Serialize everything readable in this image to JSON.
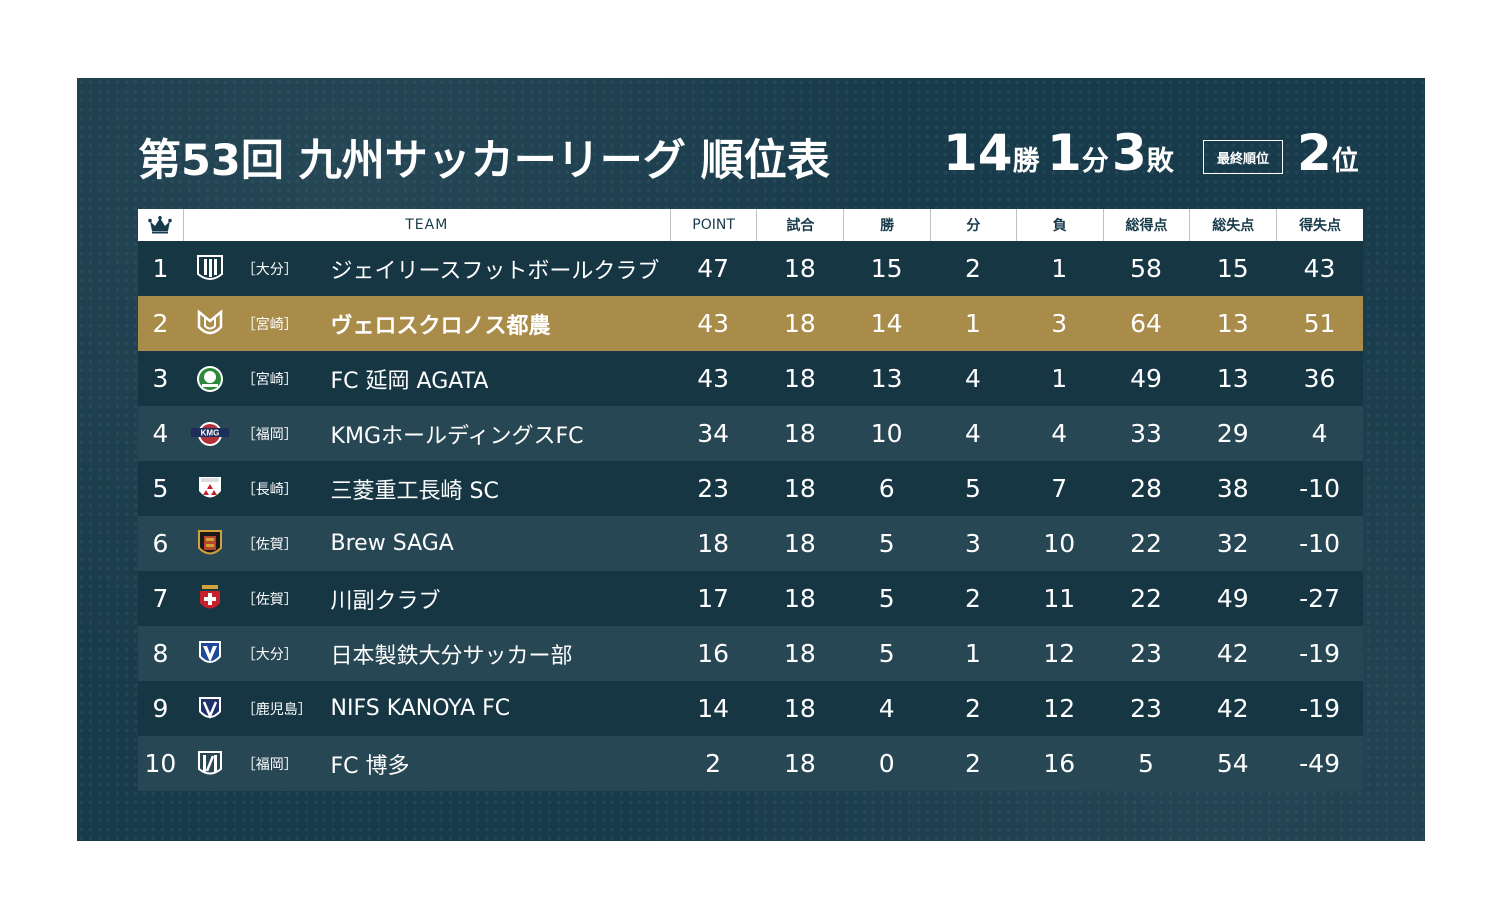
{
  "title": "第53回 九州サッカーリーグ 順位表",
  "record": {
    "wins": "14",
    "wins_unit": "勝",
    "draws": "1",
    "draws_unit": "分",
    "losses": "3",
    "losses_unit": "敗"
  },
  "final": {
    "label": "最終順位",
    "rank": "2",
    "rank_unit": "位"
  },
  "header": {
    "crown_icon": "crown-icon",
    "team": "TEAM",
    "point": "POINT",
    "games": "試合",
    "wins": "勝",
    "draws": "分",
    "losses": "負",
    "goals_for": "総得点",
    "goals_against": "総失点",
    "goal_diff": "得失点"
  },
  "colors": {
    "board": "#183b4b",
    "highlight": "#a98c4a",
    "row_dark": "#163644",
    "row_light": "#284754"
  },
  "rows": [
    {
      "rank": "1",
      "pref": "［大分］",
      "team": "ジェイリースフットボールクラブ",
      "logo": "jleague-shield-logo",
      "pt": "47",
      "gp": "18",
      "w": "15",
      "d": "2",
      "l": "1",
      "gf": "58",
      "ga": "15",
      "gd": "43"
    },
    {
      "rank": "2",
      "pref": "［宮崎］",
      "team": "ヴェロスクロノス都農",
      "logo": "veroskronos-logo",
      "pt": "43",
      "gp": "18",
      "w": "14",
      "d": "1",
      "l": "3",
      "gf": "64",
      "ga": "13",
      "gd": "51"
    },
    {
      "rank": "3",
      "pref": "［宮崎］",
      "team": "FC 延岡 AGATA",
      "logo": "agata-emblem-logo",
      "pt": "43",
      "gp": "18",
      "w": "13",
      "d": "4",
      "l": "1",
      "gf": "49",
      "ga": "13",
      "gd": "36"
    },
    {
      "rank": "4",
      "pref": "［福岡］",
      "team": "KMGホールディングスFC",
      "logo": "kmg-logo",
      "pt": "34",
      "gp": "18",
      "w": "10",
      "d": "4",
      "l": "4",
      "gf": "33",
      "ga": "29",
      "gd": "4"
    },
    {
      "rank": "5",
      "pref": "［長崎］",
      "team": "三菱重工長崎 SC",
      "logo": "mitsubishi-crest-logo",
      "pt": "23",
      "gp": "18",
      "w": "6",
      "d": "5",
      "l": "7",
      "gf": "28",
      "ga": "38",
      "gd": "-10"
    },
    {
      "rank": "6",
      "pref": "［佐賀］",
      "team": "Brew SAGA",
      "logo": "brew-saga-logo",
      "pt": "18",
      "gp": "18",
      "w": "5",
      "d": "3",
      "l": "10",
      "gf": "22",
      "ga": "32",
      "gd": "-10"
    },
    {
      "rank": "7",
      "pref": "［佐賀］",
      "team": "川副クラブ",
      "logo": "kawasoe-crest-logo",
      "pt": "17",
      "gp": "18",
      "w": "5",
      "d": "2",
      "l": "11",
      "gf": "22",
      "ga": "49",
      "gd": "-27"
    },
    {
      "rank": "8",
      "pref": "［大分］",
      "team": "日本製鉄大分サッカー部",
      "logo": "nippon-steel-logo",
      "pt": "16",
      "gp": "18",
      "w": "5",
      "d": "1",
      "l": "12",
      "gf": "23",
      "ga": "42",
      "gd": "-19"
    },
    {
      "rank": "9",
      "pref": "［鹿児島］",
      "team": "NIFS KANOYA FC",
      "logo": "nifs-kanoya-logo",
      "pt": "14",
      "gp": "18",
      "w": "4",
      "d": "2",
      "l": "12",
      "gf": "23",
      "ga": "42",
      "gd": "-19"
    },
    {
      "rank": "10",
      "pref": "［福岡］",
      "team": "FC 博多",
      "logo": "fc-hakata-logo",
      "pt": "2",
      "gp": "18",
      "w": "0",
      "d": "2",
      "l": "16",
      "gf": "5",
      "ga": "54",
      "gd": "-49"
    }
  ]
}
